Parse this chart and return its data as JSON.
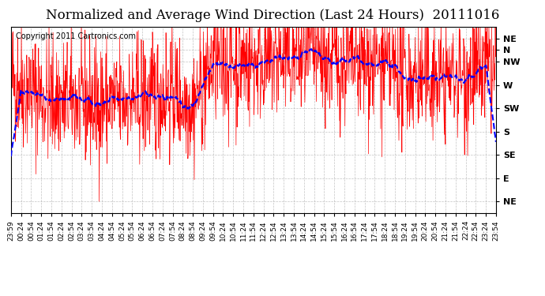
{
  "title": "Normalized and Average Wind Direction (Last 24 Hours)  20111016",
  "copyright": "Copyright 2011 Cartronics.com",
  "background_color": "#ffffff",
  "plot_bg_color": "#ffffff",
  "grid_color": "#aaaaaa",
  "y_labels": [
    "NE",
    "N",
    "NW",
    "W",
    "SW",
    "S",
    "SE",
    "E",
    "NE"
  ],
  "y_values": [
    360,
    337.5,
    315,
    270,
    225,
    180,
    135,
    90,
    45
  ],
  "ylim": [
    22.5,
    382.5
  ],
  "x_tick_labels": [
    "23:59",
    "00:24",
    "00:54",
    "01:24",
    "01:54",
    "02:24",
    "02:54",
    "03:24",
    "03:54",
    "04:24",
    "04:54",
    "05:24",
    "05:54",
    "06:24",
    "06:54",
    "07:24",
    "07:54",
    "08:24",
    "08:54",
    "09:24",
    "09:54",
    "10:24",
    "10:54",
    "11:24",
    "11:54",
    "12:24",
    "12:54",
    "13:24",
    "13:54",
    "14:24",
    "14:54",
    "15:24",
    "15:54",
    "16:24",
    "16:54",
    "17:24",
    "17:54",
    "18:24",
    "18:54",
    "19:24",
    "19:54",
    "20:24",
    "20:54",
    "21:24",
    "21:54",
    "22:24",
    "22:54",
    "23:24",
    "23:54"
  ],
  "red_line_color": "#ff0000",
  "blue_line_color": "#0000ff",
  "title_fontsize": 12,
  "copyright_fontsize": 7,
  "axis_label_fontsize": 8,
  "tick_label_fontsize": 6.5
}
